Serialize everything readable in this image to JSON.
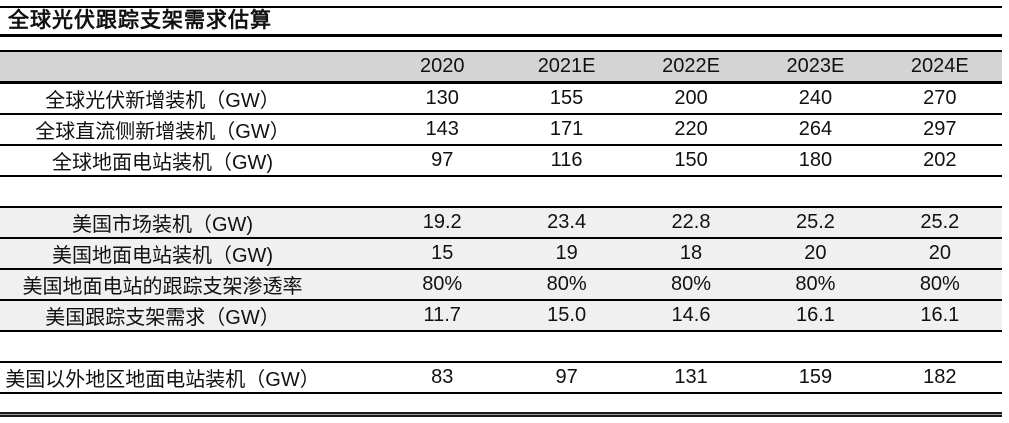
{
  "title": "全球光伏跟踪支架需求估算",
  "colors": {
    "header_bg": "#d4d4d4",
    "shade_bg": "#f0f0f0",
    "border": "#000000"
  },
  "table": {
    "columns": [
      "2020",
      "2021E",
      "2022E",
      "2023E",
      "2024E"
    ],
    "rows": [
      {
        "label": "全球光伏新增装机（GW）",
        "values": [
          "130",
          "155",
          "200",
          "240",
          "270"
        ],
        "shade": false,
        "blank": false
      },
      {
        "label": "全球直流侧新增装机（GW）",
        "values": [
          "143",
          "171",
          "220",
          "264",
          "297"
        ],
        "shade": false,
        "blank": false
      },
      {
        "label": "全球地面电站装机（GW)",
        "values": [
          "97",
          "116",
          "150",
          "180",
          "202"
        ],
        "shade": false,
        "blank": false
      },
      {
        "label": "",
        "values": [],
        "shade": false,
        "blank": true
      },
      {
        "label": "美国市场装机（GW)",
        "values": [
          "19.2",
          "23.4",
          "22.8",
          "25.2",
          "25.2"
        ],
        "shade": true,
        "blank": false
      },
      {
        "label": "美国地面电站装机（GW)",
        "values": [
          "15",
          "19",
          "18",
          "20",
          "20"
        ],
        "shade": true,
        "blank": false
      },
      {
        "label": "美国地面电站的跟踪支架渗透率",
        "values": [
          "80%",
          "80%",
          "80%",
          "80%",
          "80%"
        ],
        "shade": true,
        "blank": false
      },
      {
        "label": "美国跟踪支架需求（GW）",
        "values": [
          "11.7",
          "15.0",
          "14.6",
          "16.1",
          "16.1"
        ],
        "shade": true,
        "blank": false
      },
      {
        "label": "",
        "values": [],
        "shade": false,
        "blank": true
      },
      {
        "label": "美国以外地区地面电站装机（GW）",
        "values": [
          "83",
          "97",
          "131",
          "159",
          "182"
        ],
        "shade": false,
        "blank": false
      }
    ]
  }
}
